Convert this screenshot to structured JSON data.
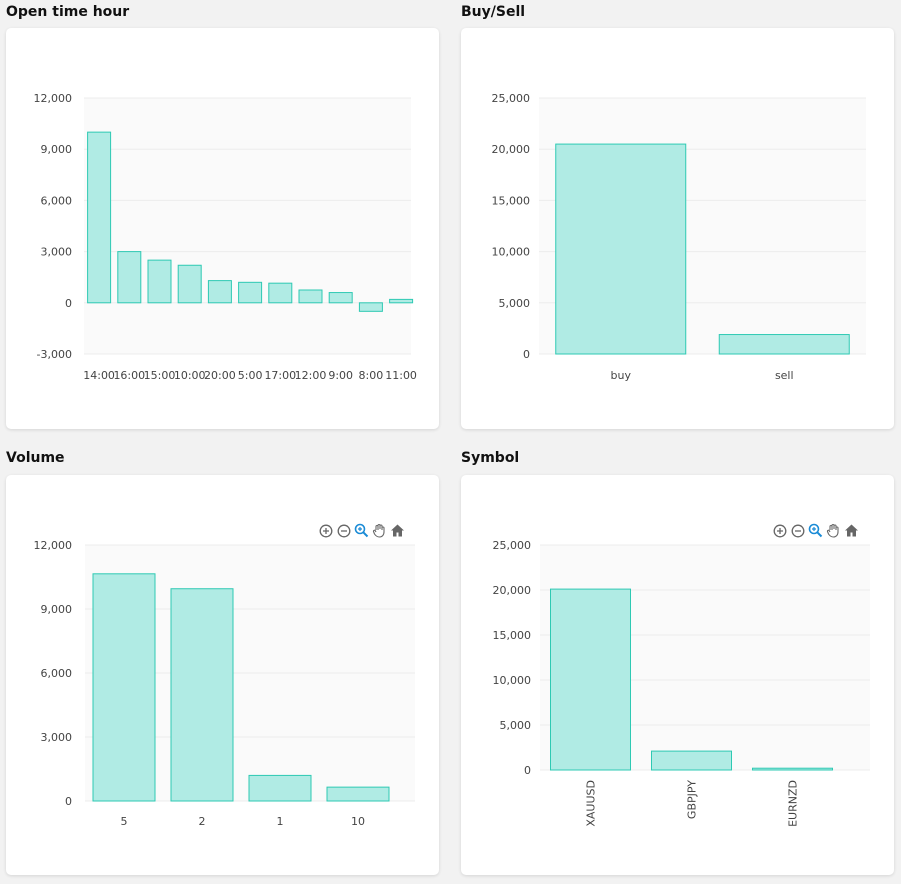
{
  "colors": {
    "bar_fill": "#b0ebe4",
    "bar_stroke": "#2ec9b3",
    "plot_bg": "#fafafa",
    "grid": "#ececec",
    "tick_text": "#444444",
    "toolbar_icon": "#666666",
    "toolbar_active": "#1a8bd6"
  },
  "toolbar": {
    "icons": [
      "zoom-in-icon",
      "zoom-out-icon",
      "zoom-selection-icon",
      "pan-hand-icon",
      "reset-home-icon"
    ]
  },
  "charts": [
    {
      "id": "open-time-hour",
      "title": "Open time hour",
      "toolbar": false,
      "chart_data": {
        "type": "bar",
        "title": "Open time hour",
        "categories": [
          "14:00",
          "16:00",
          "15:00",
          "10:00",
          "20:00",
          "5:00",
          "17:00",
          "12:00",
          "9:00",
          "8:00",
          "11:00"
        ],
        "values": [
          10000,
          3000,
          2500,
          2200,
          1300,
          1200,
          1150,
          750,
          600,
          -500,
          200
        ],
        "yticks": [
          12000,
          9000,
          6000,
          3000,
          0,
          -3000
        ],
        "ytick_labels": [
          "12,000",
          "9,000",
          "6,000",
          "3,000",
          "0",
          "-3,000"
        ],
        "ylim": [
          -3000,
          12000
        ],
        "grid": true,
        "xlabel": "",
        "ylabel": ""
      }
    },
    {
      "id": "buy-sell",
      "title": "Buy/Sell",
      "toolbar": false,
      "chart_data": {
        "type": "bar",
        "title": "Buy/Sell",
        "categories": [
          "buy",
          "sell"
        ],
        "values": [
          20500,
          1900
        ],
        "yticks": [
          25000,
          20000,
          15000,
          10000,
          5000,
          0
        ],
        "ytick_labels": [
          "25,000",
          "20,000",
          "15,000",
          "10,000",
          "5,000",
          "0"
        ],
        "ylim": [
          0,
          25000
        ],
        "grid": true,
        "xlabel": "",
        "ylabel": ""
      }
    },
    {
      "id": "volume",
      "title": "Volume",
      "toolbar": true,
      "chart_data": {
        "type": "bar",
        "title": "Volume",
        "categories": [
          "5",
          "2",
          "1",
          "10"
        ],
        "values": [
          10650,
          9950,
          1200,
          650
        ],
        "yticks": [
          12000,
          9000,
          6000,
          3000,
          0
        ],
        "ytick_labels": [
          "12,000",
          "9,000",
          "6,000",
          "3,000",
          "0"
        ],
        "ylim": [
          0,
          12000
        ],
        "grid": true,
        "xlabel": "",
        "ylabel": ""
      }
    },
    {
      "id": "symbol",
      "title": "Symbol",
      "toolbar": true,
      "chart_data": {
        "type": "bar",
        "title": "Symbol",
        "categories": [
          "XAUUSD",
          "GBPJPY",
          "EURNZD"
        ],
        "values": [
          20100,
          2100,
          200
        ],
        "yticks": [
          25000,
          20000,
          15000,
          10000,
          5000,
          0
        ],
        "ytick_labels": [
          "25,000",
          "20,000",
          "15,000",
          "10,000",
          "5,000",
          "0"
        ],
        "ylim": [
          0,
          25000
        ],
        "grid": true,
        "rotate_x_labels": true,
        "xlabel": "",
        "ylabel": ""
      }
    }
  ]
}
